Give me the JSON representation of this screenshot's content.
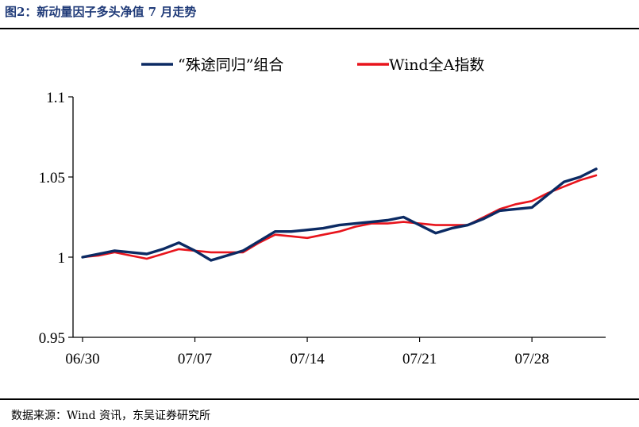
{
  "header": {
    "title": "图2：新动量因子多头净值 7 月走势"
  },
  "footer": {
    "source": "数据来源：Wind 资讯，东吴证券研究所"
  },
  "colors": {
    "series1": "#0b2a63",
    "series2": "#e8141c",
    "axis": "#000000",
    "title": "#1f3a78"
  },
  "chart_data": {
    "type": "line",
    "title": "",
    "xlabel": "",
    "ylabel": "",
    "ylim": [
      0.95,
      1.1
    ],
    "yticks": [
      "0.95",
      "1",
      "1.05",
      "1.1"
    ],
    "xticks": [
      "06/30",
      "07/07",
      "07/14",
      "07/21",
      "07/28"
    ],
    "grid": false,
    "legend_position": "top",
    "x": [
      "06/30",
      "07/01",
      "07/02",
      "07/03",
      "07/04",
      "07/05",
      "07/06",
      "07/07",
      "07/08",
      "07/09",
      "07/10",
      "07/11",
      "07/12",
      "07/13",
      "07/14",
      "07/15",
      "07/16",
      "07/17",
      "07/18",
      "07/19",
      "07/20",
      "07/21",
      "07/22",
      "07/23",
      "07/24",
      "07/25",
      "07/26",
      "07/27",
      "07/28",
      "07/29",
      "07/30",
      "07/31",
      "08/01"
    ],
    "series": [
      {
        "name": "“殊途同归”组合",
        "values": [
          1.0,
          1.002,
          1.004,
          1.003,
          1.002,
          1.005,
          1.009,
          1.004,
          0.998,
          1.001,
          1.004,
          1.01,
          1.016,
          1.016,
          1.017,
          1.018,
          1.02,
          1.021,
          1.022,
          1.023,
          1.025,
          1.02,
          1.015,
          1.018,
          1.02,
          1.024,
          1.029,
          1.03,
          1.031,
          1.039,
          1.047,
          1.05,
          1.055
        ]
      },
      {
        "name": "Wind全A指数",
        "values": [
          1.0,
          1.001,
          1.003,
          1.001,
          0.999,
          1.002,
          1.005,
          1.004,
          1.003,
          1.003,
          1.003,
          1.009,
          1.014,
          1.013,
          1.012,
          1.014,
          1.016,
          1.019,
          1.021,
          1.021,
          1.022,
          1.021,
          1.02,
          1.02,
          1.02,
          1.025,
          1.03,
          1.033,
          1.035,
          1.04,
          1.044,
          1.048,
          1.051
        ]
      }
    ]
  }
}
